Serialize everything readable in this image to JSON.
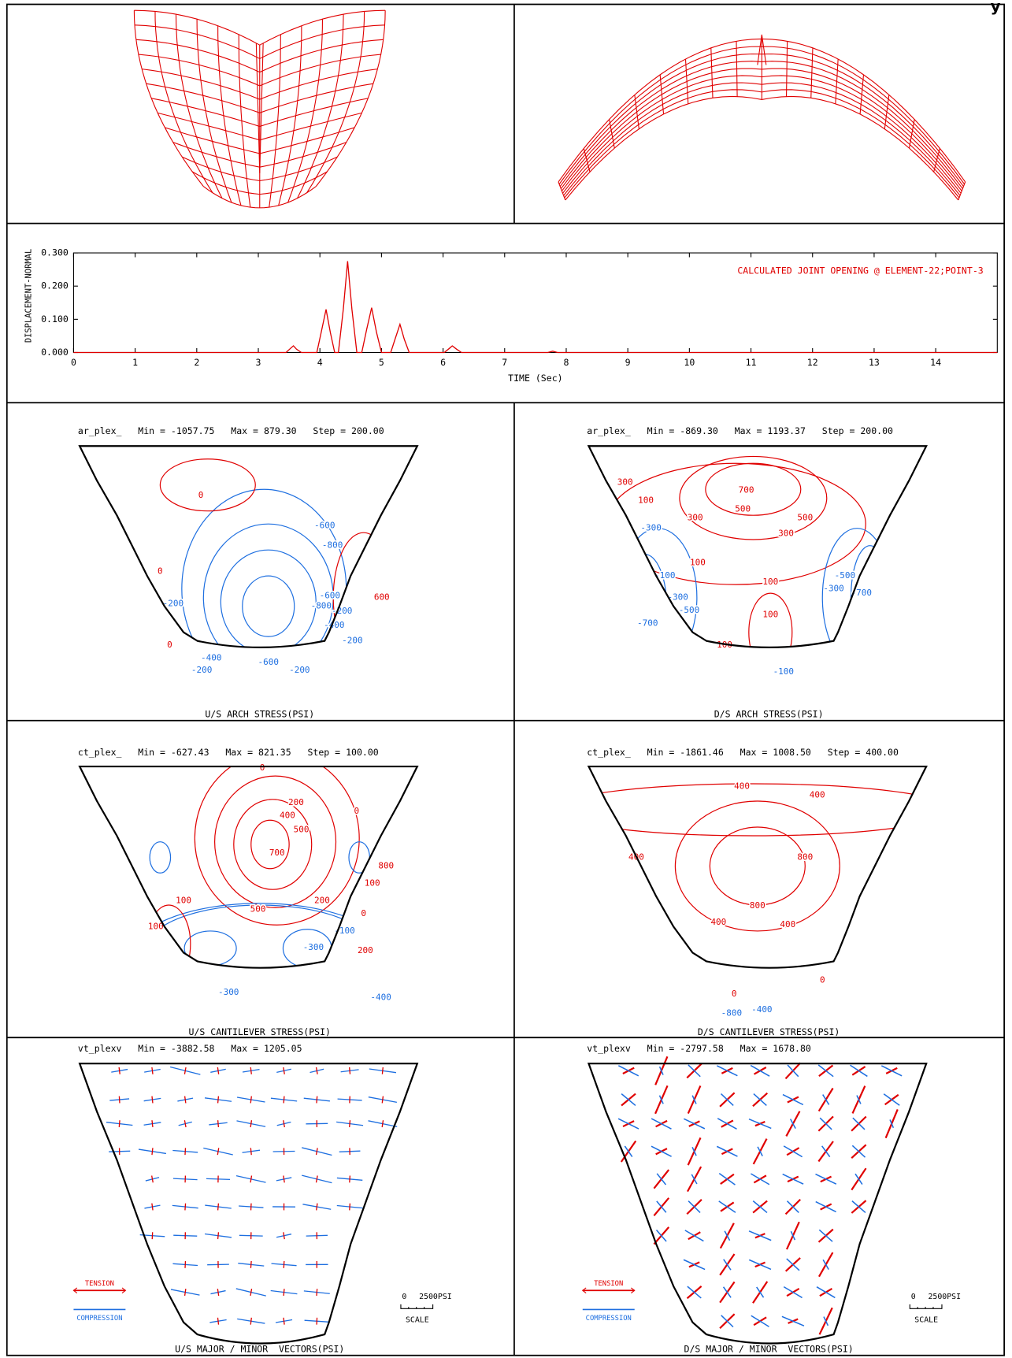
{
  "corner_text": "y",
  "chart_data": {
    "type": "line",
    "ylabel": "DISPLACEMENT-NORMAL",
    "xlabel": "TIME (Sec)",
    "annotation": "CALCULATED JOINT OPENING @ ELEMENT-22;POINT-3",
    "xlim": [
      0,
      15
    ],
    "xticks": [
      0,
      1,
      2,
      3,
      4,
      5,
      6,
      7,
      8,
      9,
      10,
      11,
      12,
      13,
      14
    ],
    "ylim": [
      0,
      0.3
    ],
    "yticks": [
      {
        "value": 0,
        "label": "0.000"
      },
      {
        "value": 0.1,
        "label": "0.100"
      },
      {
        "value": 0.2,
        "label": "0.200"
      },
      {
        "value": 0.3,
        "label": "0.300"
      }
    ],
    "series": [
      {
        "color": "#e00000",
        "x": [
          0,
          3.45,
          3.52,
          3.57,
          3.62,
          3.7,
          3.95,
          4.02,
          4.1,
          4.17,
          4.24,
          4.3,
          4.38,
          4.45,
          4.52,
          4.6,
          4.68,
          4.76,
          4.84,
          4.92,
          5.0,
          5.15,
          5.22,
          5.3,
          5.37,
          5.45,
          6.02,
          6.1,
          6.15,
          6.22,
          6.3,
          7.7,
          7.78,
          7.86,
          15
        ],
        "values": [
          0,
          0,
          0.012,
          0.02,
          0.01,
          0,
          0,
          0.06,
          0.13,
          0.06,
          0,
          0,
          0.13,
          0.275,
          0.13,
          0,
          0,
          0.07,
          0.135,
          0.06,
          0,
          0,
          0.04,
          0.085,
          0.04,
          0,
          0,
          0.012,
          0.02,
          0.01,
          0,
          0,
          0.004,
          0,
          0
        ]
      }
    ]
  },
  "panels": [
    {
      "header": "ar_plex_   Min = -1057.75   Max = 879.30   Step = 200.00",
      "caption": "U/S ARCH STRESS(PSI)",
      "contour_labels": [
        "0",
        "0",
        "-200",
        "0",
        "-600",
        "-800",
        "-800",
        "-600",
        "-400",
        "-200",
        "-200",
        "600",
        "-400",
        "-200",
        "-600",
        "-200"
      ]
    },
    {
      "header": "ar_plex_   Min = -869.30   Max = 1193.37   Step = 200.00",
      "caption": "D/S ARCH STRESS(PSI)",
      "contour_labels": [
        "300",
        "700",
        "500",
        "500",
        "100",
        "300",
        "300",
        "-300",
        "100",
        "100",
        "100",
        "-100",
        "-300",
        "-500",
        "-700",
        "100",
        "-100",
        "-300",
        "-500",
        "-700"
      ]
    },
    {
      "header": "ct_plex_   Min = -627.43   Max = 821.35   Step = 100.00",
      "caption": "U/S CANTILEVER STRESS(PSI)",
      "contour_labels": [
        "0",
        "0",
        "200",
        "400",
        "500",
        "700",
        "500",
        "100",
        "100",
        "100",
        "200",
        "0",
        "800",
        "-100",
        "-300",
        "-300",
        "-400",
        "200"
      ]
    },
    {
      "header": "ct_plex_   Min = -1861.46   Max = 1008.50   Step = 400.00",
      "caption": "D/S CANTILEVER STRESS(PSI)",
      "contour_labels": [
        "400",
        "400",
        "400",
        "800",
        "800",
        "400",
        "400",
        "0",
        "0",
        "-800",
        "-400"
      ]
    },
    {
      "header": "vt_plexv   Min = -3882.58   Max = 1205.05",
      "caption": "U/S MAJOR / MINOR  VECTORS(PSI)",
      "legend": [
        "TENSION",
        "COMPRESSION"
      ],
      "scale_labels": [
        "0",
        "2500PSI",
        "SCALE"
      ]
    },
    {
      "header": "vt_plexv   Min = -2797.58   Max = 1678.80",
      "caption": "D/S MAJOR / MINOR  VECTORS(PSI)",
      "legend": [
        "TENSION",
        "COMPRESSION"
      ],
      "scale_labels": [
        "0",
        "2500PSI",
        "SCALE"
      ]
    }
  ]
}
